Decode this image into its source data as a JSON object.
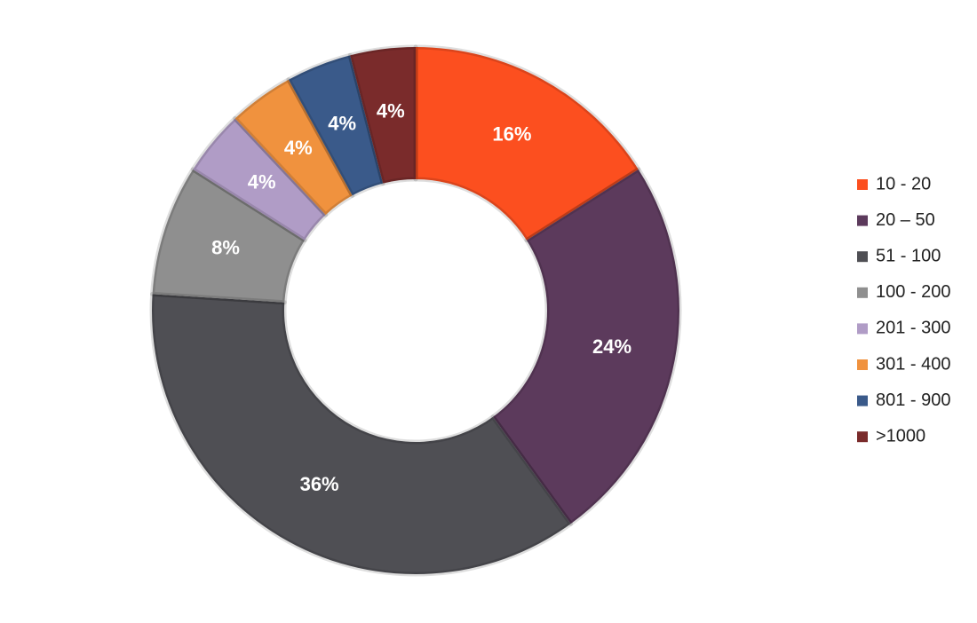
{
  "chart_data": {
    "type": "donut",
    "categories": [
      "10 - 20",
      "20 – 50",
      "51 - 100",
      "100 - 200",
      "201 - 300",
      "301 - 400",
      "801 - 900",
      ">1000"
    ],
    "values": [
      16,
      24,
      36,
      8,
      4,
      4,
      4,
      4
    ],
    "value_labels": [
      "16%",
      "24%",
      "36%",
      "8%",
      "4%",
      "4%",
      "4%",
      "4%"
    ],
    "colors": [
      "#fc4f1f",
      "#5c3a5c",
      "#4f4f54",
      "#8f8f8f",
      "#b09cc6",
      "#f0923e",
      "#3a5a8a",
      "#7a2b2b"
    ],
    "legend": "right"
  }
}
